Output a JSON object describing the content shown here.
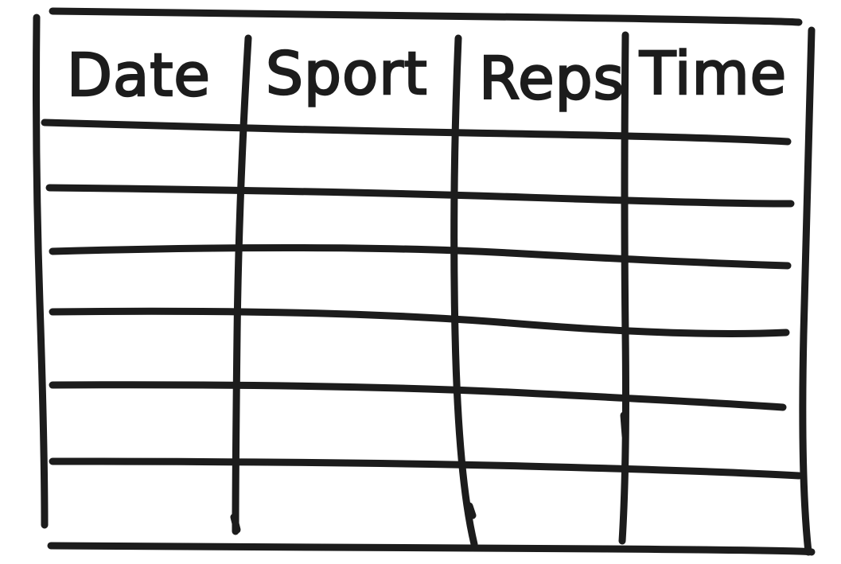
{
  "table": {
    "columns": [
      "Date",
      "Sport",
      "Reps",
      "Time"
    ],
    "rows": [
      [
        "",
        "",
        "",
        ""
      ],
      [
        "",
        "",
        "",
        ""
      ],
      [
        "",
        "",
        "",
        ""
      ],
      [
        "",
        "",
        "",
        ""
      ],
      [
        "",
        "",
        "",
        ""
      ],
      [
        "",
        "",
        "",
        ""
      ]
    ]
  },
  "colors": {
    "ink": "#1c1c1c",
    "paper": "#ffffff"
  }
}
